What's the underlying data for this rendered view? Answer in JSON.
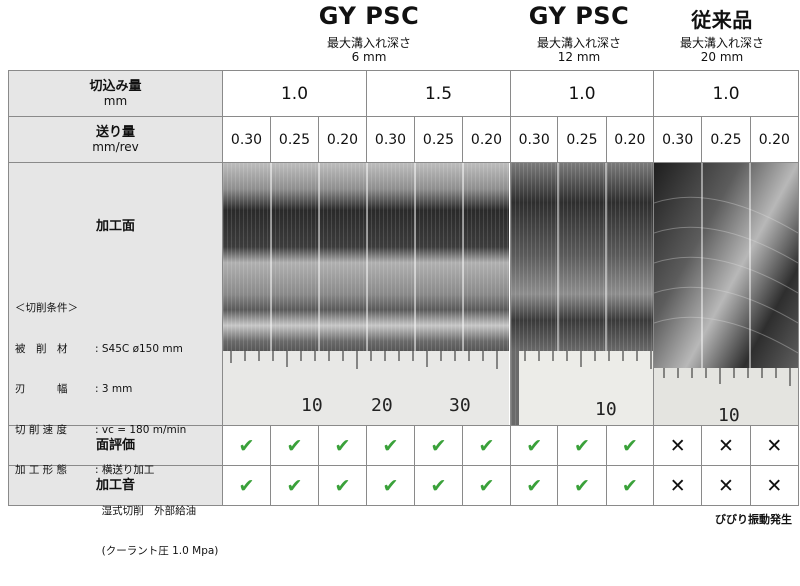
{
  "groups": [
    {
      "title": "GY PSC",
      "sub1": "最大溝入れ深さ",
      "sub2": "6 mm"
    },
    {
      "title": "GY PSC",
      "sub1": "最大溝入れ深さ",
      "sub2": "12 mm"
    },
    {
      "title": "従来品",
      "sub1": "最大溝入れ深さ",
      "sub2": "20 mm"
    }
  ],
  "rows": {
    "depth_label": "切込み量",
    "depth_unit": "mm",
    "feed_label": "送り量",
    "feed_unit": "mm/rev",
    "surface_label": "加工面",
    "eval_label": "面評価",
    "sound_label": "加工音"
  },
  "depths": [
    "1.0",
    "1.5",
    "1.0",
    "1.0"
  ],
  "feeds": [
    "0.30",
    "0.25",
    "0.20",
    "0.30",
    "0.25",
    "0.20",
    "0.30",
    "0.25",
    "0.20",
    "0.30",
    "0.25",
    "0.20"
  ],
  "conditions": {
    "heading": "＜切削条件＞",
    "lines": [
      {
        "key": "被　削　材",
        "value": ": S45C ø150 mm"
      },
      {
        "key": "刃　　　幅",
        "value": ": 3 mm"
      },
      {
        "key": "切 削 速 度",
        "value": ": vc = 180 m/min"
      },
      {
        "key": "加 工 形 態",
        "value": ": 横送り加工"
      },
      {
        "key": "",
        "value": "  湿式切削　外部給油"
      },
      {
        "key": "",
        "value": "  (クーラント圧 1.0 Mpa)"
      }
    ]
  },
  "ruler_numbers": {
    "a": [
      "10",
      "20",
      "30"
    ],
    "b": [
      "10"
    ],
    "c": [
      "10"
    ]
  },
  "symbols": {
    "ok": "✔",
    "ng": "✕"
  },
  "evaluation": [
    "ok",
    "ok",
    "ok",
    "ok",
    "ok",
    "ok",
    "ok",
    "ok",
    "ok",
    "ng",
    "ng",
    "ng"
  ],
  "sound": [
    "ok",
    "ok",
    "ok",
    "ok",
    "ok",
    "ok",
    "ok",
    "ok",
    "ok",
    "ng",
    "ng",
    "ng"
  ],
  "footnote": "びびり振動発生",
  "colors": {
    "check": "#3aa13a",
    "label_bg": "#e6e6e6",
    "border": "#8a8a8a"
  }
}
